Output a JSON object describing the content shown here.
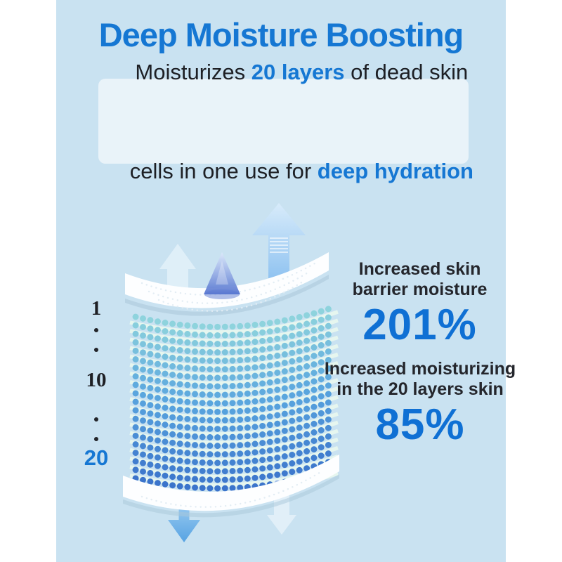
{
  "colors": {
    "page_bg": "#ffffff",
    "panel_bg": "#c9e2f1",
    "box_bg": "#e9f3f9",
    "accent_blue": "#1577d3",
    "value_blue": "#0f70d4",
    "text_dark": "#1d1f24"
  },
  "title": "Deep Moisture Boosting",
  "subtitle_box": {
    "line1": [
      "Moisturizes ",
      "20 layers",
      " of dead skin"
    ],
    "line2": [
      "cells in one use for ",
      "deep hydration"
    ]
  },
  "layer_scale": {
    "top": "1",
    "middle": "10",
    "bottom": "20"
  },
  "stats": [
    {
      "label_line1": "Increased skin",
      "label_line2": "barrier moisture",
      "value": "201%"
    },
    {
      "label_line1": "Increased moisturizing",
      "label_line2": "in the 20 layers skin",
      "value": "85%"
    }
  ],
  "illustration": {
    "layer_count": 20,
    "bead_color_top": "#8ed3dd",
    "bead_color_mid": "#57a3de",
    "bead_color_bottom": "#3b74cb",
    "sheet_color": "#e8f7ef"
  }
}
